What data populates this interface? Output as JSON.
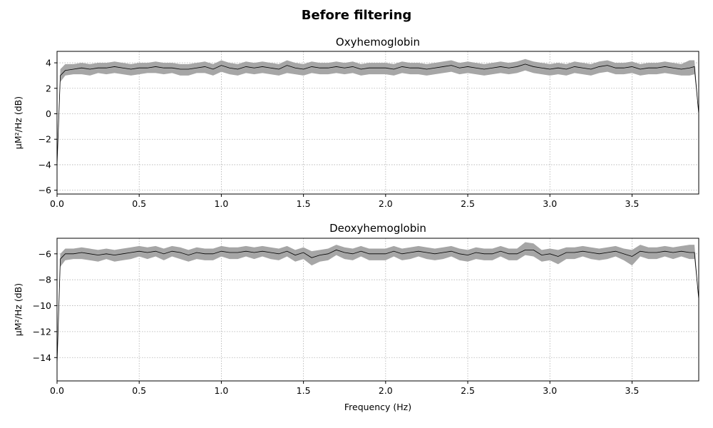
{
  "figure": {
    "title": "Before filtering"
  },
  "colors": {
    "band": "#a6a6a6",
    "mean_line": "#000000",
    "grid": "#b0b0b0"
  },
  "chart_data": [
    {
      "type": "area",
      "title": "Oxyhemoglobin",
      "xlabel": "",
      "ylabel": "μM²/Hz (dB)",
      "xlim": [
        0.0,
        3.906
      ],
      "ylim": [
        -6.3,
        4.9
      ],
      "xticks": [
        0.0,
        0.5,
        1.0,
        1.5,
        2.0,
        2.5,
        3.0,
        3.5
      ],
      "xtick_labels": [
        "0.0",
        "0.5",
        "1.0",
        "1.5",
        "2.0",
        "2.5",
        "3.0",
        "3.5"
      ],
      "yticks": [
        -6,
        -4,
        -2,
        0,
        2,
        4
      ],
      "ytick_labels": [
        "−6",
        "−4",
        "−2",
        "0",
        "2",
        "4"
      ],
      "grid": true,
      "series": [
        {
          "x": [
            0.0,
            0.02,
            0.05,
            0.1,
            0.15,
            0.2,
            0.25,
            0.3,
            0.35,
            0.4,
            0.45,
            0.5,
            0.55,
            0.6,
            0.65,
            0.7,
            0.75,
            0.8,
            0.85,
            0.9,
            0.95,
            1.0,
            1.05,
            1.1,
            1.15,
            1.2,
            1.25,
            1.3,
            1.35,
            1.4,
            1.45,
            1.5,
            1.55,
            1.6,
            1.65,
            1.7,
            1.75,
            1.8,
            1.85,
            1.9,
            1.95,
            2.0,
            2.05,
            2.1,
            2.15,
            2.2,
            2.25,
            2.3,
            2.35,
            2.4,
            2.45,
            2.5,
            2.55,
            2.6,
            2.65,
            2.7,
            2.75,
            2.8,
            2.85,
            2.9,
            2.95,
            3.0,
            3.05,
            3.1,
            3.15,
            3.2,
            3.25,
            3.3,
            3.35,
            3.4,
            3.45,
            3.5,
            3.55,
            3.6,
            3.65,
            3.7,
            3.75,
            3.8,
            3.85,
            3.88,
            3.906
          ],
          "mean": [
            -4.0,
            3.0,
            3.4,
            3.5,
            3.6,
            3.5,
            3.6,
            3.6,
            3.7,
            3.6,
            3.5,
            3.6,
            3.6,
            3.7,
            3.6,
            3.6,
            3.5,
            3.5,
            3.6,
            3.7,
            3.5,
            3.8,
            3.6,
            3.5,
            3.7,
            3.6,
            3.7,
            3.6,
            3.5,
            3.8,
            3.6,
            3.5,
            3.7,
            3.6,
            3.6,
            3.7,
            3.6,
            3.7,
            3.5,
            3.6,
            3.6,
            3.6,
            3.5,
            3.7,
            3.6,
            3.6,
            3.5,
            3.6,
            3.7,
            3.8,
            3.6,
            3.7,
            3.6,
            3.5,
            3.6,
            3.7,
            3.6,
            3.7,
            3.9,
            3.7,
            3.6,
            3.5,
            3.6,
            3.5,
            3.7,
            3.6,
            3.5,
            3.7,
            3.8,
            3.6,
            3.6,
            3.7,
            3.5,
            3.6,
            3.6,
            3.7,
            3.6,
            3.5,
            3.6,
            3.7,
            0.0
          ],
          "lower": [
            -4.0,
            2.5,
            3.0,
            3.1,
            3.1,
            3.0,
            3.2,
            3.1,
            3.2,
            3.1,
            3.0,
            3.1,
            3.2,
            3.2,
            3.1,
            3.2,
            3.0,
            3.0,
            3.2,
            3.2,
            3.0,
            3.3,
            3.1,
            3.0,
            3.2,
            3.1,
            3.2,
            3.1,
            3.0,
            3.2,
            3.1,
            3.0,
            3.2,
            3.1,
            3.1,
            3.2,
            3.1,
            3.2,
            3.0,
            3.1,
            3.1,
            3.1,
            3.0,
            3.2,
            3.1,
            3.1,
            3.0,
            3.1,
            3.2,
            3.3,
            3.1,
            3.2,
            3.1,
            3.0,
            3.1,
            3.2,
            3.1,
            3.2,
            3.4,
            3.2,
            3.1,
            3.0,
            3.1,
            3.0,
            3.2,
            3.1,
            3.0,
            3.2,
            3.3,
            3.1,
            3.1,
            3.2,
            3.0,
            3.1,
            3.1,
            3.2,
            3.1,
            3.0,
            3.0,
            3.1,
            0.0
          ],
          "upper": [
            -4.0,
            3.5,
            3.9,
            3.9,
            4.0,
            3.9,
            4.0,
            4.0,
            4.1,
            4.0,
            3.9,
            4.0,
            4.0,
            4.1,
            4.0,
            4.0,
            3.9,
            3.9,
            4.0,
            4.1,
            3.9,
            4.2,
            4.0,
            3.9,
            4.1,
            4.0,
            4.1,
            4.0,
            3.9,
            4.2,
            4.0,
            3.9,
            4.1,
            4.0,
            4.0,
            4.1,
            4.0,
            4.1,
            3.9,
            4.0,
            4.0,
            4.0,
            3.9,
            4.1,
            4.0,
            4.0,
            3.9,
            4.0,
            4.1,
            4.2,
            4.0,
            4.1,
            4.0,
            3.9,
            4.0,
            4.1,
            4.0,
            4.1,
            4.3,
            4.1,
            4.0,
            3.9,
            4.0,
            3.9,
            4.1,
            4.0,
            3.9,
            4.1,
            4.2,
            4.0,
            4.0,
            4.1,
            3.9,
            4.0,
            4.0,
            4.1,
            4.0,
            3.9,
            4.2,
            4.2,
            0.0
          ]
        }
      ]
    },
    {
      "type": "area",
      "title": "Deoxyhemoglobin",
      "xlabel": "Frequency (Hz)",
      "ylabel": "μM²/Hz (dB)",
      "xlim": [
        0.0,
        3.906
      ],
      "ylim": [
        -15.8,
        -4.8
      ],
      "xticks": [
        0.0,
        0.5,
        1.0,
        1.5,
        2.0,
        2.5,
        3.0,
        3.5
      ],
      "xtick_labels": [
        "0.0",
        "0.5",
        "1.0",
        "1.5",
        "2.0",
        "2.5",
        "3.0",
        "3.5"
      ],
      "yticks": [
        -14,
        -12,
        -10,
        -8,
        -6
      ],
      "ytick_labels": [
        "−14",
        "−12",
        "−10",
        "−8",
        "−6"
      ],
      "grid": true,
      "series": [
        {
          "x": [
            0.0,
            0.02,
            0.05,
            0.1,
            0.15,
            0.2,
            0.25,
            0.3,
            0.35,
            0.4,
            0.45,
            0.5,
            0.55,
            0.6,
            0.65,
            0.7,
            0.75,
            0.8,
            0.85,
            0.9,
            0.95,
            1.0,
            1.05,
            1.1,
            1.15,
            1.2,
            1.25,
            1.3,
            1.35,
            1.4,
            1.45,
            1.5,
            1.55,
            1.6,
            1.65,
            1.7,
            1.75,
            1.8,
            1.85,
            1.9,
            1.95,
            2.0,
            2.05,
            2.1,
            2.15,
            2.2,
            2.25,
            2.3,
            2.35,
            2.4,
            2.45,
            2.5,
            2.55,
            2.6,
            2.65,
            2.7,
            2.75,
            2.8,
            2.85,
            2.9,
            2.95,
            3.0,
            3.05,
            3.1,
            3.15,
            3.2,
            3.25,
            3.3,
            3.35,
            3.4,
            3.45,
            3.5,
            3.55,
            3.6,
            3.65,
            3.7,
            3.75,
            3.8,
            3.85,
            3.88,
            3.906
          ],
          "mean": [
            -14.5,
            -6.4,
            -6.0,
            -6.0,
            -5.9,
            -6.0,
            -6.1,
            -6.0,
            -6.1,
            -6.0,
            -5.9,
            -5.8,
            -5.9,
            -5.8,
            -6.0,
            -5.8,
            -5.9,
            -6.1,
            -5.9,
            -6.0,
            -6.0,
            -5.8,
            -5.9,
            -5.9,
            -5.8,
            -5.9,
            -5.8,
            -5.9,
            -6.0,
            -5.8,
            -6.1,
            -5.9,
            -6.3,
            -6.1,
            -6.0,
            -5.7,
            -5.9,
            -6.0,
            -5.8,
            -6.0,
            -6.0,
            -6.0,
            -5.8,
            -6.0,
            -5.9,
            -5.8,
            -5.9,
            -6.0,
            -5.9,
            -5.8,
            -6.0,
            -6.1,
            -5.9,
            -6.0,
            -6.0,
            -5.8,
            -6.0,
            -6.0,
            -5.7,
            -5.7,
            -6.1,
            -6.0,
            -6.2,
            -5.9,
            -5.9,
            -5.8,
            -5.9,
            -6.0,
            -5.9,
            -5.8,
            -6.0,
            -6.2,
            -5.8,
            -5.9,
            -5.9,
            -5.8,
            -5.9,
            -5.8,
            -5.9,
            -5.9,
            -9.5
          ],
          "lower": [
            -14.5,
            -7.0,
            -6.5,
            -6.4,
            -6.4,
            -6.5,
            -6.6,
            -6.4,
            -6.6,
            -6.5,
            -6.4,
            -6.2,
            -6.4,
            -6.2,
            -6.5,
            -6.2,
            -6.4,
            -6.6,
            -6.4,
            -6.5,
            -6.5,
            -6.2,
            -6.4,
            -6.4,
            -6.2,
            -6.4,
            -6.2,
            -6.4,
            -6.5,
            -6.2,
            -6.6,
            -6.4,
            -6.9,
            -6.6,
            -6.5,
            -6.1,
            -6.4,
            -6.5,
            -6.2,
            -6.5,
            -6.5,
            -6.5,
            -6.2,
            -6.5,
            -6.4,
            -6.2,
            -6.4,
            -6.5,
            -6.4,
            -6.2,
            -6.5,
            -6.6,
            -6.4,
            -6.5,
            -6.5,
            -6.2,
            -6.5,
            -6.5,
            -6.1,
            -6.2,
            -6.6,
            -6.5,
            -6.8,
            -6.4,
            -6.4,
            -6.2,
            -6.4,
            -6.5,
            -6.4,
            -6.2,
            -6.5,
            -6.9,
            -6.2,
            -6.4,
            -6.4,
            -6.2,
            -6.4,
            -6.2,
            -6.4,
            -6.4,
            -9.5
          ],
          "upper": [
            -14.5,
            -6.0,
            -5.6,
            -5.6,
            -5.5,
            -5.6,
            -5.7,
            -5.6,
            -5.7,
            -5.6,
            -5.5,
            -5.4,
            -5.5,
            -5.4,
            -5.6,
            -5.4,
            -5.5,
            -5.7,
            -5.5,
            -5.6,
            -5.6,
            -5.4,
            -5.5,
            -5.5,
            -5.4,
            -5.5,
            -5.4,
            -5.5,
            -5.6,
            -5.4,
            -5.7,
            -5.5,
            -5.8,
            -5.7,
            -5.6,
            -5.3,
            -5.5,
            -5.6,
            -5.4,
            -5.6,
            -5.6,
            -5.6,
            -5.4,
            -5.6,
            -5.5,
            -5.4,
            -5.5,
            -5.6,
            -5.5,
            -5.4,
            -5.6,
            -5.7,
            -5.5,
            -5.6,
            -5.6,
            -5.4,
            -5.6,
            -5.6,
            -5.1,
            -5.2,
            -5.7,
            -5.6,
            -5.7,
            -5.5,
            -5.5,
            -5.4,
            -5.5,
            -5.6,
            -5.5,
            -5.4,
            -5.6,
            -5.7,
            -5.3,
            -5.5,
            -5.5,
            -5.4,
            -5.5,
            -5.4,
            -5.3,
            -5.3,
            -9.5
          ]
        }
      ]
    }
  ]
}
